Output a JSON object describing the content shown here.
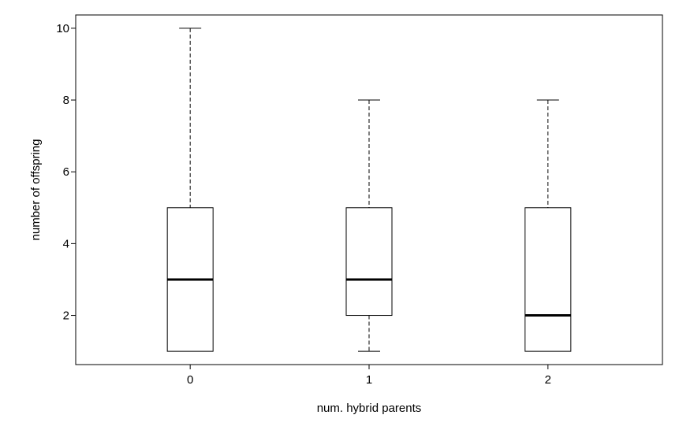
{
  "chart_data": {
    "type": "boxplot",
    "xlabel": "num. hybrid parents",
    "ylabel": "number of offspring",
    "categories": [
      "0",
      "1",
      "2"
    ],
    "boxes": [
      {
        "category": "0",
        "whisker_low": 1,
        "q1": 1,
        "median": 3,
        "q3": 5,
        "whisker_high": 10
      },
      {
        "category": "1",
        "whisker_low": 1,
        "q1": 2,
        "median": 3,
        "q3": 5,
        "whisker_high": 8
      },
      {
        "category": "2",
        "whisker_low": 1,
        "q1": 1,
        "median": 2,
        "q3": 5,
        "whisker_high": 8
      }
    ],
    "ylim": [
      0.63,
      10.37
    ],
    "yticks": [
      2,
      4,
      6,
      8,
      10
    ],
    "grid": false,
    "legend": "none"
  }
}
